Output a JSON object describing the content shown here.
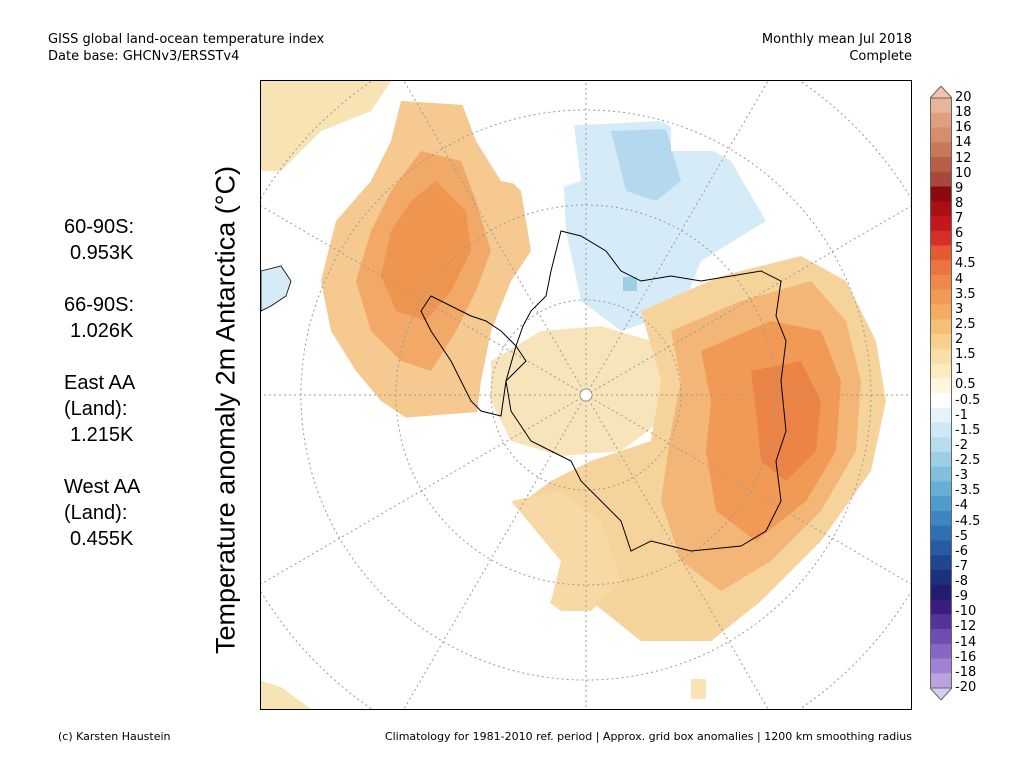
{
  "header": {
    "title": "GISS global land-ocean temperature index",
    "date_base": "Date base: GHCNv3/ERSSTv4",
    "period": "Monthly mean Jul 2018",
    "status": "Complete"
  },
  "stats": [
    {
      "label_lines": [
        "60-90S:"
      ],
      "value": "0.953K"
    },
    {
      "label_lines": [
        "66-90S:"
      ],
      "value": "1.026K"
    },
    {
      "label_lines": [
        "East AA",
        "(Land):"
      ],
      "value": "1.215K"
    },
    {
      "label_lines": [
        "West AA",
        "(Land):"
      ],
      "value": "0.455K"
    }
  ],
  "map": {
    "y_label": "Temperature anomaly 2m Antarctica (°C)",
    "projection": "south-polar-stereographic",
    "region": "Antarctica, 60-90S"
  },
  "colorbar": {
    "labels": [
      "20",
      "18",
      "16",
      "14",
      "12",
      "10",
      "9",
      "8",
      "7",
      "6",
      "5",
      "4.5",
      "4",
      "3.5",
      "3",
      "2.5",
      "2",
      "1.5",
      "1",
      "0.5",
      "-0.5",
      "-1",
      "-1.5",
      "-2",
      "-2.5",
      "-3",
      "-3.5",
      "-4",
      "-4.5",
      "-5",
      "-6",
      "-7",
      "-8",
      "-9",
      "-10",
      "-12",
      "-14",
      "-16",
      "-18",
      "-20"
    ],
    "colors": [
      "#e8b49a",
      "#dfa080",
      "#d48e6c",
      "#c8785a",
      "#b95f48",
      "#a8473a",
      "#8c0a0e",
      "#a81014",
      "#c4161c",
      "#d63026",
      "#e55a33",
      "#ec7440",
      "#ef884b",
      "#f19a56",
      "#f3ac62",
      "#f5bf75",
      "#f7d08e",
      "#f9dfa6",
      "#fbecc0",
      "#fff7dc",
      "#ffffff",
      "#e6f3fb",
      "#cfe8f5",
      "#b7dcee",
      "#9ccfe6",
      "#81bfde",
      "#67aed6",
      "#4f9bcc",
      "#3d86c0",
      "#2f70b2",
      "#275ba2",
      "#1f4690",
      "#1a317c",
      "#231c6e",
      "#3a1d80",
      "#54349a",
      "#6e4db0",
      "#8666c4",
      "#9f82d4",
      "#b9a2e0"
    ],
    "top_arrow_color": "#f3c3b0",
    "bottom_arrow_color": "#d8ccf0"
  },
  "footer": {
    "credit": "(c) Karsten Haustein",
    "note": "Climatology for 1981-2010 ref. period | Approx. grid box anomalies | 1200 km smoothing radius"
  }
}
